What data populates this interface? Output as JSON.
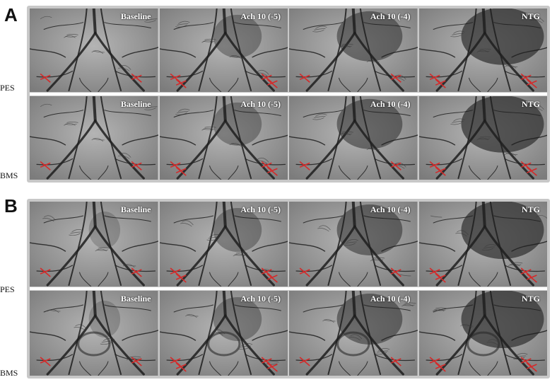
{
  "panels": [
    {
      "letter": "A",
      "rows": [
        {
          "label": "PES",
          "frames": [
            "Baseline",
            "Ach 10 (-5)",
            "Ach 10 (-4)",
            "NTG"
          ]
        },
        {
          "label": "BMS",
          "frames": [
            "Baseline",
            "Ach 10 (-5)",
            "Ach 10 (-4)",
            "NTG"
          ]
        }
      ]
    },
    {
      "letter": "B",
      "rows": [
        {
          "label": "PES",
          "frames": [
            "Baseline",
            "Ach 10 (-5)",
            "Ach 10 (-4)",
            "NTG"
          ]
        },
        {
          "label": "BMS",
          "frames": [
            "Baseline",
            "Ach 10 (-5)",
            "Ach 10 (-4)",
            "NTG"
          ]
        }
      ]
    }
  ],
  "colors": {
    "marker": "#d42a2a",
    "vessel": "#1e1e1e",
    "background": "#9a9a9a"
  }
}
